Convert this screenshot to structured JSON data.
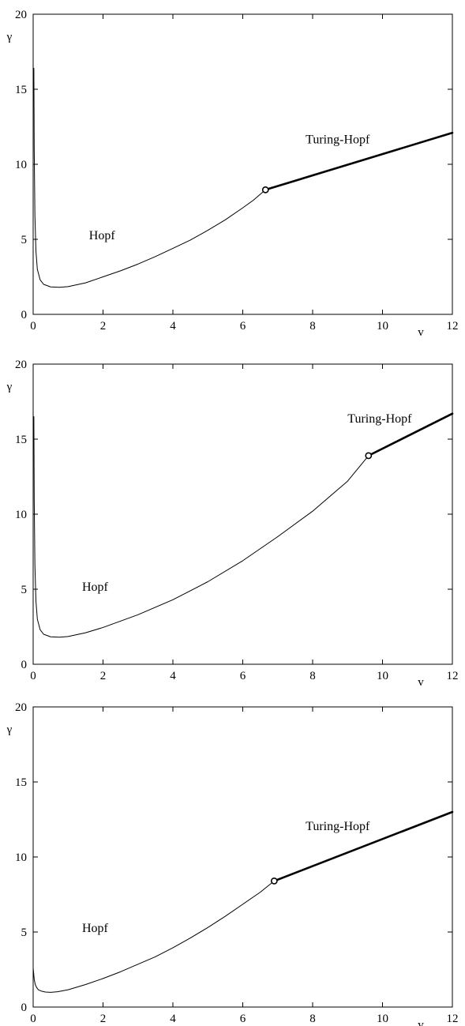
{
  "chart_data": [
    {
      "type": "line",
      "xlabel": "v",
      "ylabel": "γ",
      "xlim": [
        0,
        12
      ],
      "ylim": [
        0,
        20
      ],
      "xticks": [
        0,
        2,
        4,
        6,
        8,
        10,
        12
      ],
      "yticks": [
        0,
        5,
        10,
        15,
        20
      ],
      "grid": false,
      "annotations": [
        {
          "text": "Hopf",
          "x": 1.6,
          "y": 5.0
        },
        {
          "text": "Turing-Hopf",
          "x": 7.8,
          "y": 11.4
        }
      ],
      "series": [
        {
          "style": "thin",
          "x": [
            0.02,
            0.03,
            0.05,
            0.08,
            0.12,
            0.2,
            0.3,
            0.5,
            0.75,
            1.0,
            1.5,
            2.0,
            2.5,
            3.0,
            3.5,
            4.0,
            4.5,
            5.0,
            5.5,
            6.0,
            6.3,
            6.65
          ],
          "y": [
            16.4,
            11.0,
            6.6,
            4.2,
            3.0,
            2.3,
            2.0,
            1.83,
            1.8,
            1.85,
            2.1,
            2.5,
            2.9,
            3.35,
            3.85,
            4.4,
            4.95,
            5.6,
            6.3,
            7.1,
            7.6,
            8.3
          ]
        },
        {
          "style": "thick",
          "x": [
            6.65,
            12.0
          ],
          "y": [
            8.3,
            12.1
          ]
        }
      ],
      "markers": [
        {
          "x": 6.65,
          "y": 8.3
        }
      ]
    },
    {
      "type": "line",
      "xlabel": "v",
      "ylabel": "γ",
      "xlim": [
        0,
        12
      ],
      "ylim": [
        0,
        20
      ],
      "xticks": [
        0,
        2,
        4,
        6,
        8,
        10,
        12
      ],
      "yticks": [
        0,
        5,
        10,
        15,
        20
      ],
      "grid": false,
      "annotations": [
        {
          "text": "Hopf",
          "x": 1.4,
          "y": 4.9
        },
        {
          "text": "Turing-Hopf",
          "x": 9.0,
          "y": 16.1
        }
      ],
      "series": [
        {
          "style": "thin",
          "x": [
            0.02,
            0.03,
            0.05,
            0.08,
            0.12,
            0.2,
            0.3,
            0.5,
            0.75,
            1.0,
            1.5,
            2.0,
            3.0,
            4.0,
            5.0,
            6.0,
            7.0,
            8.0,
            9.0,
            9.6
          ],
          "y": [
            16.5,
            11.0,
            6.6,
            4.2,
            3.0,
            2.3,
            2.0,
            1.83,
            1.8,
            1.85,
            2.1,
            2.45,
            3.3,
            4.3,
            5.5,
            6.9,
            8.5,
            10.2,
            12.2,
            13.9
          ]
        },
        {
          "style": "thick",
          "x": [
            9.6,
            12.0
          ],
          "y": [
            13.9,
            16.7
          ]
        }
      ],
      "markers": [
        {
          "x": 9.6,
          "y": 13.9
        }
      ]
    },
    {
      "type": "line",
      "xlabel": "v",
      "ylabel": "γ",
      "xlim": [
        0,
        12
      ],
      "ylim": [
        0,
        20
      ],
      "xticks": [
        0,
        2,
        4,
        6,
        8,
        10,
        12
      ],
      "yticks": [
        0,
        5,
        10,
        15,
        20
      ],
      "grid": false,
      "annotations": [
        {
          "text": "Hopf",
          "x": 1.4,
          "y": 5.0
        },
        {
          "text": "Turing-Hopf",
          "x": 7.8,
          "y": 11.8
        }
      ],
      "series": [
        {
          "style": "thin",
          "x": [
            0.0,
            0.03,
            0.06,
            0.1,
            0.15,
            0.25,
            0.35,
            0.5,
            0.7,
            1.0,
            1.5,
            2.0,
            2.5,
            3.0,
            3.5,
            4.0,
            4.5,
            5.0,
            5.5,
            6.0,
            6.5,
            6.9
          ],
          "y": [
            2.6,
            1.85,
            1.5,
            1.3,
            1.15,
            1.05,
            1.0,
            0.98,
            1.02,
            1.15,
            1.5,
            1.9,
            2.35,
            2.85,
            3.35,
            3.95,
            4.6,
            5.3,
            6.05,
            6.85,
            7.65,
            8.4
          ]
        },
        {
          "style": "thick",
          "x": [
            6.9,
            12.0
          ],
          "y": [
            8.4,
            13.0
          ]
        }
      ],
      "markers": [
        {
          "x": 6.9,
          "y": 8.4
        }
      ]
    }
  ]
}
